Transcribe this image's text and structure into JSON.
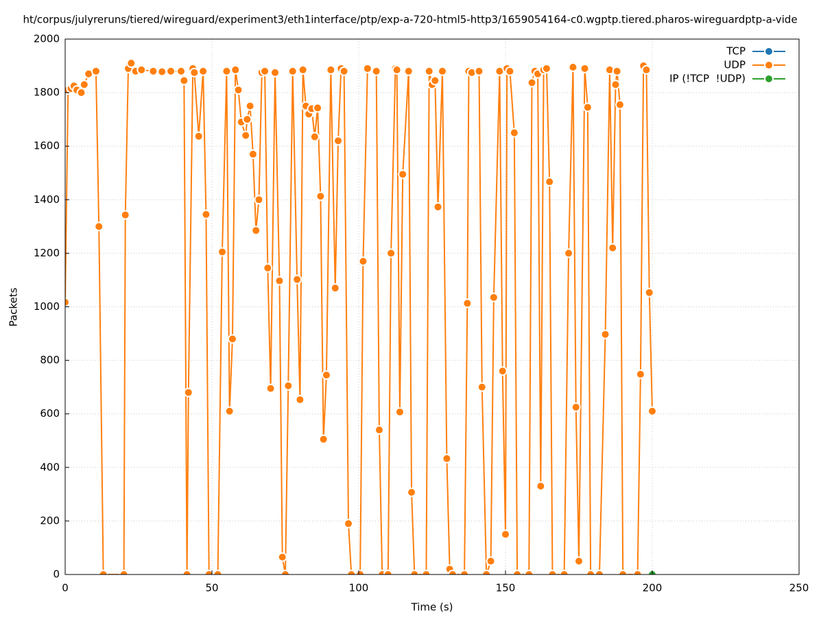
{
  "chart_data": {
    "type": "line",
    "title": "ht/corpus/julyreruns/tiered/wireguard/experiment3/eth1interface/ptp/exp-a-720-html5-http3/1659054164-c0.wgptp.tiered.pharos-wireguardptp-a-vide",
    "xlabel": "Time (s)",
    "ylabel": "Packets",
    "xlim": [
      0,
      250
    ],
    "xticks": [
      0,
      50,
      100,
      150,
      200,
      250
    ],
    "ylim": [
      0,
      2000
    ],
    "yticks": [
      0,
      200,
      400,
      600,
      800,
      1000,
      1200,
      1400,
      1600,
      1800,
      2000
    ],
    "grid": true,
    "legend": "top-right",
    "series": [
      {
        "name": "TCP",
        "color": "#1f77b4",
        "x": [],
        "values": []
      },
      {
        "name": "UDP",
        "color": "#ff7f0e",
        "x": [
          0,
          1,
          2,
          3,
          4,
          5.5,
          6.5,
          8,
          10.5,
          11.5,
          13,
          20,
          20.5,
          21.5,
          22.5,
          24,
          26,
          30,
          33,
          36,
          39.5,
          40.5,
          41.5,
          42,
          43.5,
          44,
          45.5,
          47,
          48,
          49,
          52,
          53.5,
          55,
          56,
          57,
          58,
          59,
          60,
          61.5,
          62,
          63,
          64,
          65,
          66,
          67,
          68,
          69,
          70,
          71.5,
          73,
          74,
          75,
          76,
          77.5,
          79,
          80,
          81,
          82,
          83,
          84,
          85,
          86,
          87,
          88,
          89,
          90.5,
          92,
          93,
          94,
          95,
          96.5,
          97.5,
          100.5,
          101.5,
          103,
          106,
          107,
          108,
          110,
          111,
          112.5,
          113,
          114,
          115,
          117,
          118,
          119,
          123,
          124,
          125,
          126,
          127,
          128.5,
          130,
          131,
          132,
          136,
          137,
          137.5,
          138.5,
          141,
          142,
          143.5,
          145,
          146,
          148,
          149,
          150,
          150.5,
          151.5,
          153,
          154,
          158,
          159,
          160,
          161,
          162,
          163,
          164,
          165,
          166,
          170,
          171.5,
          173,
          174,
          175,
          177,
          178,
          179,
          182,
          184,
          185.5,
          186.5,
          187.5,
          188,
          189,
          190,
          195,
          196,
          197,
          198,
          199,
          200
        ],
        "values": [
          1017,
          1810,
          1815,
          1825,
          1810,
          1800,
          1830,
          1870,
          1880,
          1300,
          0,
          0,
          1343,
          1890,
          1910,
          1880,
          1885,
          1880,
          1878,
          1880,
          1880,
          1845,
          0,
          680,
          1890,
          1875,
          1637,
          1880,
          1345,
          0,
          0,
          1205,
          1880,
          610,
          880,
          1885,
          1810,
          1690,
          1640,
          1700,
          1750,
          1570,
          1285,
          1400,
          1875,
          1880,
          1145,
          695,
          1875,
          1097,
          65,
          0,
          705,
          1880,
          1102,
          653,
          1885,
          1750,
          1720,
          1740,
          1635,
          1743,
          1413,
          505,
          745,
          1885,
          1070,
          1620,
          1890,
          1880,
          190,
          0,
          0,
          1170,
          1890,
          1880,
          540,
          0,
          0,
          1200,
          1890,
          1885,
          607,
          1495,
          1880,
          307,
          0,
          0,
          1880,
          1830,
          1845,
          1373,
          1880,
          433,
          20,
          0,
          0,
          1013,
          1880,
          1875,
          1880,
          700,
          0,
          50,
          1035,
          1880,
          760,
          150,
          1890,
          1880,
          1650,
          0,
          0,
          1837,
          1880,
          1870,
          330,
          1885,
          1890,
          1467,
          0,
          0,
          1200,
          1895,
          625,
          50,
          1890,
          1745,
          0,
          0,
          897,
          1885,
          1220,
          1830,
          1880,
          1755,
          0,
          0,
          748,
          1900,
          1885,
          1053,
          610
        ]
      },
      {
        "name": "IP (!TCP  !UDP)",
        "color": "#2ca02c",
        "x": [
          200
        ],
        "values": [
          0
        ]
      }
    ]
  }
}
